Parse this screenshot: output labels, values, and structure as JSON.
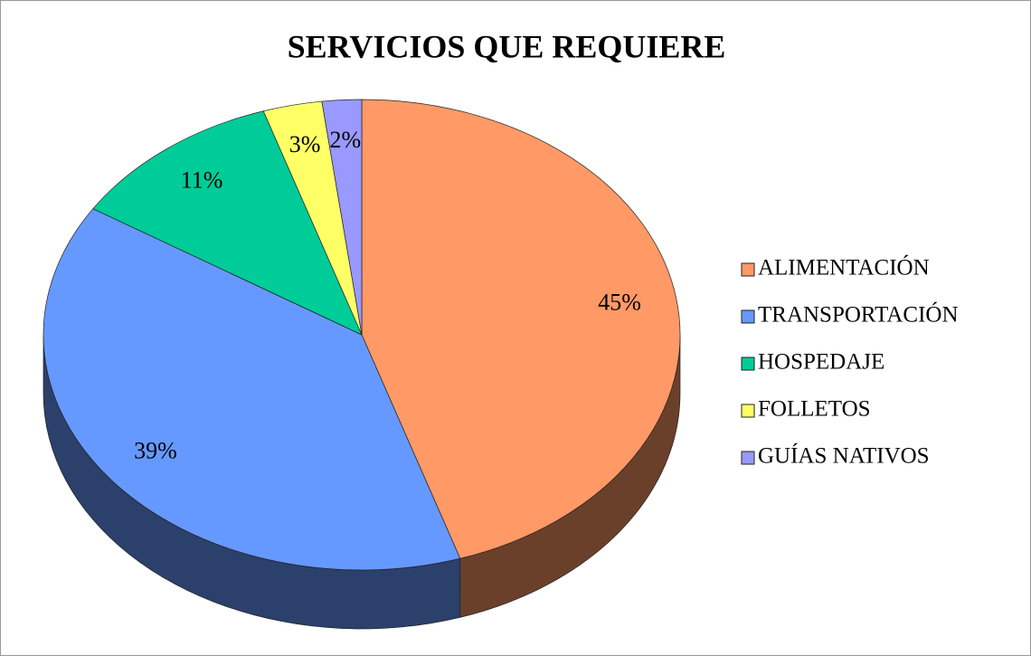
{
  "chart_data": {
    "type": "pie",
    "title": "SERVICIOS QUE REQUIERE",
    "categories": [
      "ALIMENTACIÓN",
      "TRANSPORTACIÓN",
      "HOSPEDAJE",
      "FOLLETOS",
      "GUÍAS NATIVOS"
    ],
    "values": [
      45,
      39,
      11,
      3,
      2
    ],
    "value_labels": [
      "45%",
      "39%",
      "11%",
      "3%",
      "2%"
    ],
    "colors": [
      "#FF9966",
      "#6699FF",
      "#00CC99",
      "#FFFF66",
      "#9999FF"
    ],
    "legend": "right"
  }
}
